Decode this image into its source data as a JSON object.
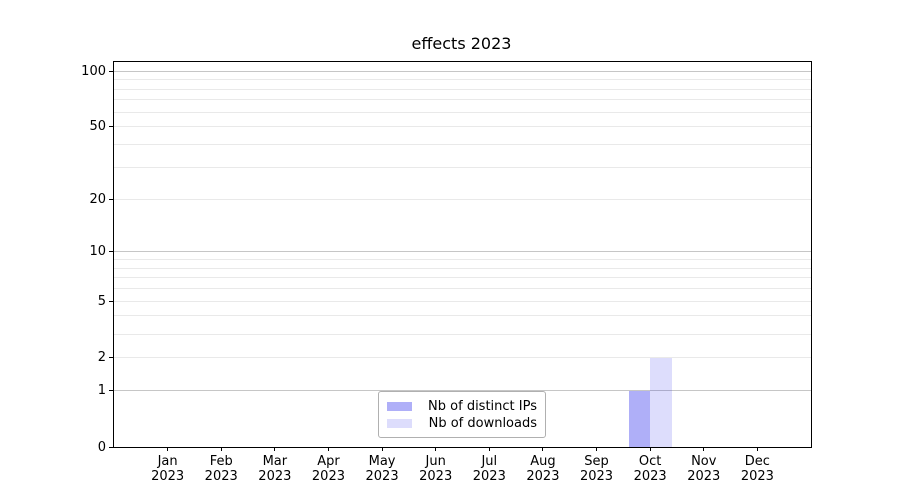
{
  "chart_data": {
    "type": "bar",
    "title": "effects 2023",
    "categories": [
      [
        "Jan",
        "2023"
      ],
      [
        "Feb",
        "2023"
      ],
      [
        "Mar",
        "2023"
      ],
      [
        "Apr",
        "2023"
      ],
      [
        "May",
        "2023"
      ],
      [
        "Jun",
        "2023"
      ],
      [
        "Jul",
        "2023"
      ],
      [
        "Aug",
        "2023"
      ],
      [
        "Sep",
        "2023"
      ],
      [
        "Oct",
        "2023"
      ],
      [
        "Nov",
        "2023"
      ],
      [
        "Dec",
        "2023"
      ]
    ],
    "series": [
      {
        "name": "Nb of distinct IPs",
        "fill": "rgba(25,25,235,0.35)",
        "approx_hex": "#a9a9f6",
        "values": [
          0,
          0,
          0,
          0,
          0,
          0,
          0,
          0,
          0,
          1,
          0,
          0
        ]
      },
      {
        "name": "Nb of downloads",
        "fill": "rgba(25,25,235,0.15)",
        "approx_hex": "#dcdcfa",
        "values": [
          0,
          0,
          0,
          0,
          0,
          0,
          0,
          0,
          0,
          2,
          0,
          0
        ]
      }
    ],
    "yscale": "log1p",
    "ylim": [
      0,
      112
    ],
    "yticks": [
      0,
      1,
      2,
      5,
      10,
      20,
      50,
      100
    ],
    "grid": {
      "on": true,
      "dark_values": [
        1,
        10,
        100
      ],
      "dark_color": "#c6c6c6",
      "light_values": [
        2,
        3,
        4,
        5,
        6,
        7,
        8,
        9,
        20,
        30,
        40,
        50,
        60,
        70,
        80,
        90
      ],
      "light_color": "#e9e9e9"
    },
    "legend_position": "lower center",
    "background": "#ffffff",
    "spine_color": "#000000"
  }
}
